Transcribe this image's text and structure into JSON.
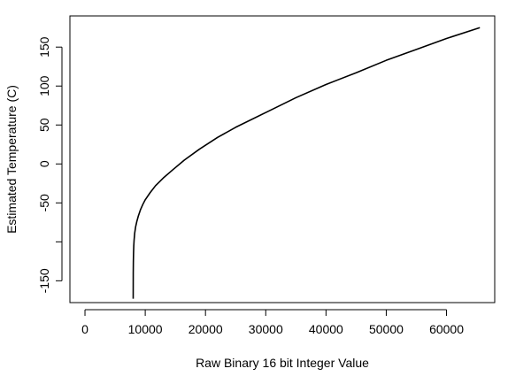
{
  "chart_data": {
    "type": "line",
    "title": "",
    "xlabel": "Raw Binary 16 bit Integer Value",
    "ylabel": "Estimated Temperature (C)",
    "xlim": [
      -2500,
      68000
    ],
    "ylim": [
      -178,
      190
    ],
    "xticks": [
      0,
      10000,
      20000,
      30000,
      40000,
      50000,
      60000
    ],
    "xtick_labels": [
      "0",
      "10000",
      "20000",
      "30000",
      "40000",
      "50000",
      "60000"
    ],
    "yticks": [
      -150,
      -100,
      -50,
      0,
      50,
      100,
      150
    ],
    "ytick_labels": [
      "-150",
      "",
      "-50",
      "0",
      "50",
      "100",
      "150"
    ],
    "grid": false,
    "legend": "none",
    "series": [
      {
        "color": "#000000",
        "x": [
          8000,
          8010,
          8030,
          8060,
          8100,
          8150,
          8250,
          8400,
          8600,
          8850,
          9200,
          9600,
          10000,
          10800,
          11700,
          13000,
          14500,
          16500,
          19000,
          22000,
          25000,
          30000,
          35000,
          40000,
          45000,
          50000,
          55000,
          60000,
          65535
        ],
        "y": [
          -173,
          -140,
          -125,
          -114,
          -105,
          -98,
          -89,
          -81,
          -74,
          -67,
          -59,
          -52,
          -46,
          -37,
          -28,
          -18,
          -8,
          5,
          19,
          34,
          47,
          66,
          85,
          102,
          117,
          133,
          147,
          161,
          175
        ]
      }
    ]
  }
}
